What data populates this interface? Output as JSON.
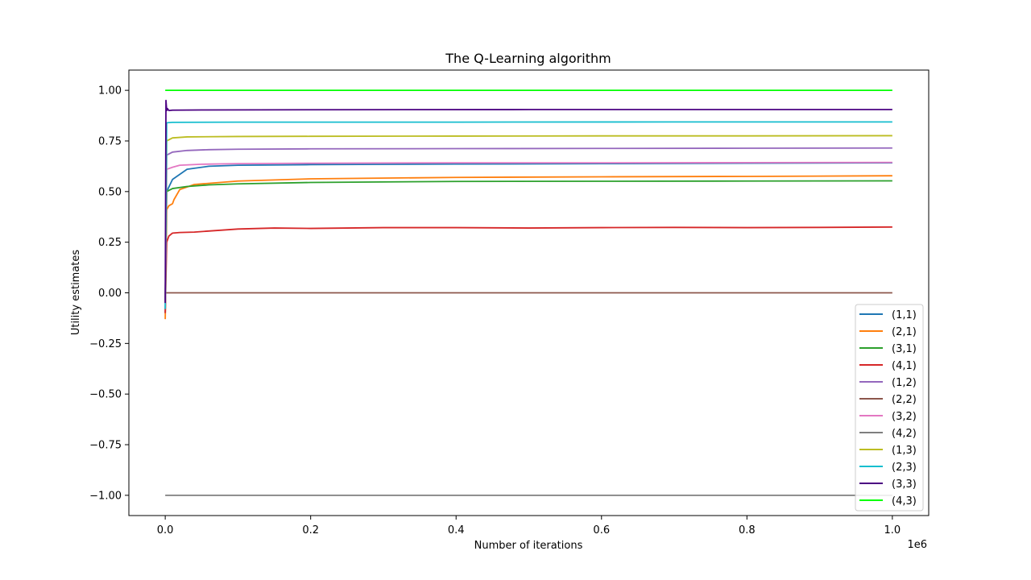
{
  "chart_data": {
    "type": "line",
    "title": "The Q-Learning algorithm",
    "xlabel": "Number of iterations",
    "ylabel": "Utility estimates",
    "x_offset_text": "1e6",
    "xlim": [
      -0.05,
      1.05
    ],
    "ylim": [
      -1.1,
      1.1
    ],
    "x_ticks": [
      0.0,
      0.2,
      0.4,
      0.6,
      0.8,
      1.0
    ],
    "x_tick_labels": [
      "0.0",
      "0.2",
      "0.4",
      "0.6",
      "0.8",
      "1.0"
    ],
    "y_ticks": [
      1.0,
      0.75,
      0.5,
      0.25,
      0.0,
      -0.25,
      -0.5,
      -0.75,
      -1.0
    ],
    "y_tick_labels": [
      "1.00",
      "0.75",
      "0.50",
      "0.25",
      "0.00",
      "−0.25",
      "−0.50",
      "−0.75",
      "−1.00"
    ],
    "grid": false,
    "legend_position": "lower-right",
    "series": [
      {
        "name": "(1,1)",
        "color": "#1f77b4",
        "x": [
          0,
          0.002,
          0.01,
          0.03,
          0.06,
          0.1,
          0.2,
          0.4,
          0.6,
          0.8,
          1.0
        ],
        "y": [
          -0.1,
          0.5,
          0.56,
          0.61,
          0.625,
          0.63,
          0.633,
          0.636,
          0.638,
          0.64,
          0.642
        ]
      },
      {
        "name": "(2,1)",
        "color": "#ff7f0e",
        "x": [
          0,
          0.002,
          0.005,
          0.01,
          0.012,
          0.02,
          0.04,
          0.1,
          0.2,
          0.4,
          0.6,
          0.8,
          1.0
        ],
        "y": [
          -0.13,
          0.41,
          0.43,
          0.44,
          0.46,
          0.51,
          0.535,
          0.552,
          0.563,
          0.57,
          0.573,
          0.575,
          0.578
        ]
      },
      {
        "name": "(3,1)",
        "color": "#2ca02c",
        "x": [
          0,
          0.002,
          0.01,
          0.03,
          0.06,
          0.1,
          0.2,
          0.4,
          0.6,
          0.8,
          1.0
        ],
        "y": [
          -0.05,
          0.5,
          0.515,
          0.525,
          0.533,
          0.538,
          0.545,
          0.55,
          0.551,
          0.552,
          0.553
        ]
      },
      {
        "name": "(4,1)",
        "color": "#d62728",
        "x": [
          0,
          0.002,
          0.005,
          0.01,
          0.02,
          0.04,
          0.06,
          0.1,
          0.15,
          0.2,
          0.3,
          0.4,
          0.5,
          0.6,
          0.7,
          0.8,
          0.9,
          1.0
        ],
        "y": [
          -0.1,
          0.25,
          0.28,
          0.295,
          0.298,
          0.3,
          0.305,
          0.315,
          0.32,
          0.318,
          0.322,
          0.322,
          0.32,
          0.322,
          0.323,
          0.322,
          0.323,
          0.325
        ]
      },
      {
        "name": "(1,2)",
        "color": "#9467bd",
        "x": [
          0,
          0.002,
          0.01,
          0.03,
          0.06,
          0.1,
          0.2,
          0.4,
          0.6,
          0.8,
          1.0
        ],
        "y": [
          -0.05,
          0.68,
          0.695,
          0.703,
          0.707,
          0.709,
          0.711,
          0.712,
          0.713,
          0.714,
          0.715
        ]
      },
      {
        "name": "(2,2)",
        "color": "#8c564b",
        "x": [
          0,
          1.0
        ],
        "y": [
          0.0,
          0.0
        ]
      },
      {
        "name": "(3,2)",
        "color": "#e377c2",
        "x": [
          0,
          0.002,
          0.01,
          0.02,
          0.05,
          0.1,
          0.2,
          0.4,
          0.6,
          0.8,
          1.0
        ],
        "y": [
          -0.05,
          0.61,
          0.62,
          0.63,
          0.635,
          0.638,
          0.64,
          0.642,
          0.642,
          0.643,
          0.644
        ]
      },
      {
        "name": "(4,2)",
        "color": "#7f7f7f",
        "x": [
          0,
          1.0
        ],
        "y": [
          -1.0,
          -1.0
        ]
      },
      {
        "name": "(1,3)",
        "color": "#bcbd22",
        "x": [
          0,
          0.002,
          0.01,
          0.03,
          0.1,
          0.2,
          0.4,
          0.6,
          0.8,
          1.0
        ],
        "y": [
          -0.05,
          0.75,
          0.765,
          0.77,
          0.772,
          0.773,
          0.774,
          0.775,
          0.775,
          0.776
        ]
      },
      {
        "name": "(2,3)",
        "color": "#17becf",
        "x": [
          0,
          0.002,
          0.01,
          0.1,
          0.4,
          0.7,
          1.0
        ],
        "y": [
          -0.08,
          0.84,
          0.842,
          0.843,
          0.843,
          0.844,
          0.844
        ]
      },
      {
        "name": "(3,3)",
        "color": "#4b0082",
        "x": [
          0,
          0.001,
          0.002,
          0.003,
          0.005,
          0.01,
          0.05,
          0.2,
          0.5,
          0.8,
          1.0
        ],
        "y": [
          -0.05,
          0.95,
          0.9,
          0.91,
          0.9,
          0.902,
          0.903,
          0.904,
          0.905,
          0.905,
          0.905
        ]
      },
      {
        "name": "(4,3)",
        "color": "#00ff00",
        "x": [
          0,
          1.0
        ],
        "y": [
          1.0,
          1.0
        ]
      }
    ]
  }
}
